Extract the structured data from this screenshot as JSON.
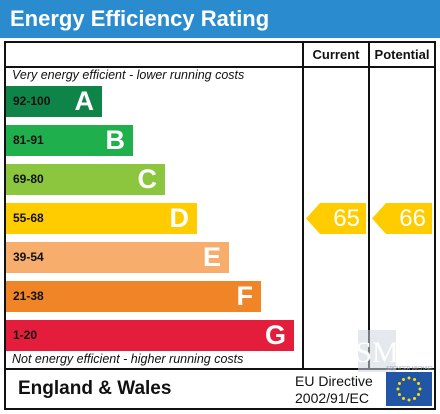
{
  "title": "Energy Efficiency Rating",
  "columns": {
    "current": "Current",
    "potential": "Potential"
  },
  "notes": {
    "top": "Very energy efficient - lower running costs",
    "bottom": "Not energy efficient - higher running costs"
  },
  "bands": [
    {
      "range": "92-100",
      "letter": "A",
      "color": "#0f8449"
    },
    {
      "range": "81-91",
      "letter": "B",
      "color": "#1fb04d"
    },
    {
      "range": "69-80",
      "letter": "C",
      "color": "#8cc63f"
    },
    {
      "range": "55-68",
      "letter": "D",
      "color": "#ffcc00"
    },
    {
      "range": "39-54",
      "letter": "E",
      "color": "#f7ad6b"
    },
    {
      "range": "21-38",
      "letter": "F",
      "color": "#f08528"
    },
    {
      "range": "1-20",
      "letter": "G",
      "color": "#e31d3b"
    }
  ],
  "ratings": {
    "current": {
      "value": "65",
      "band": "D",
      "color": "#ffcc00"
    },
    "potential": {
      "value": "66",
      "band": "D",
      "color": "#ffcc00"
    }
  },
  "footer": {
    "region": "England & Wales",
    "directive_line1": "EU Directive",
    "directive_line2": "2002/91/EC"
  },
  "watermark": {
    "monogram": "SM",
    "text": "SPENCER MICHAEL"
  },
  "icons": {
    "eu_flag": "eu-flag-icon"
  }
}
